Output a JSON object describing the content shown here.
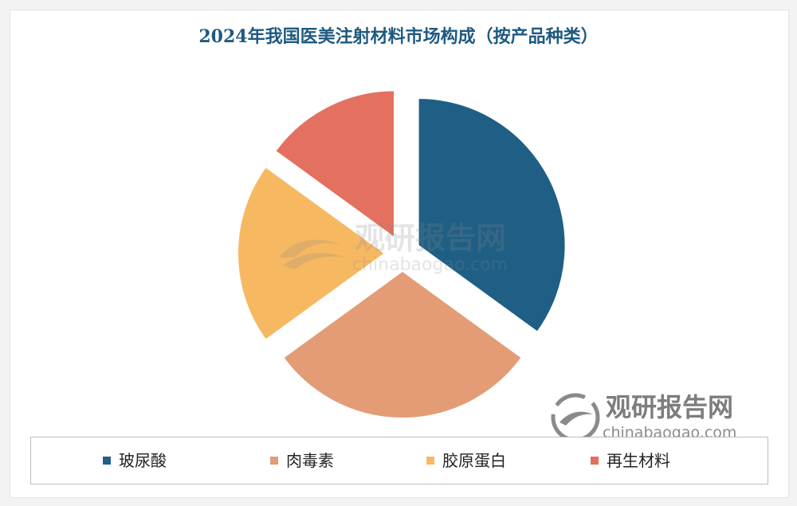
{
  "chart_data": {
    "type": "pie",
    "title": "2024年我国医美注射材料市场构成（按产品种类）",
    "slices": [
      {
        "label": "玻尿酸",
        "value": 35,
        "color": "#1f5f85"
      },
      {
        "label": "肉毒素",
        "value": 30,
        "color": "#e39c75"
      },
      {
        "label": "胶原蛋白",
        "value": 20,
        "color": "#f7b862"
      },
      {
        "label": "再生材料",
        "value": 15,
        "color": "#e4705f"
      }
    ],
    "exploded": true,
    "legend_position": "bottom"
  },
  "watermark": {
    "name_cn": "观研报告网",
    "name_en": "chinabaogao.com",
    "logo_icon": "swirl-logo-icon"
  }
}
